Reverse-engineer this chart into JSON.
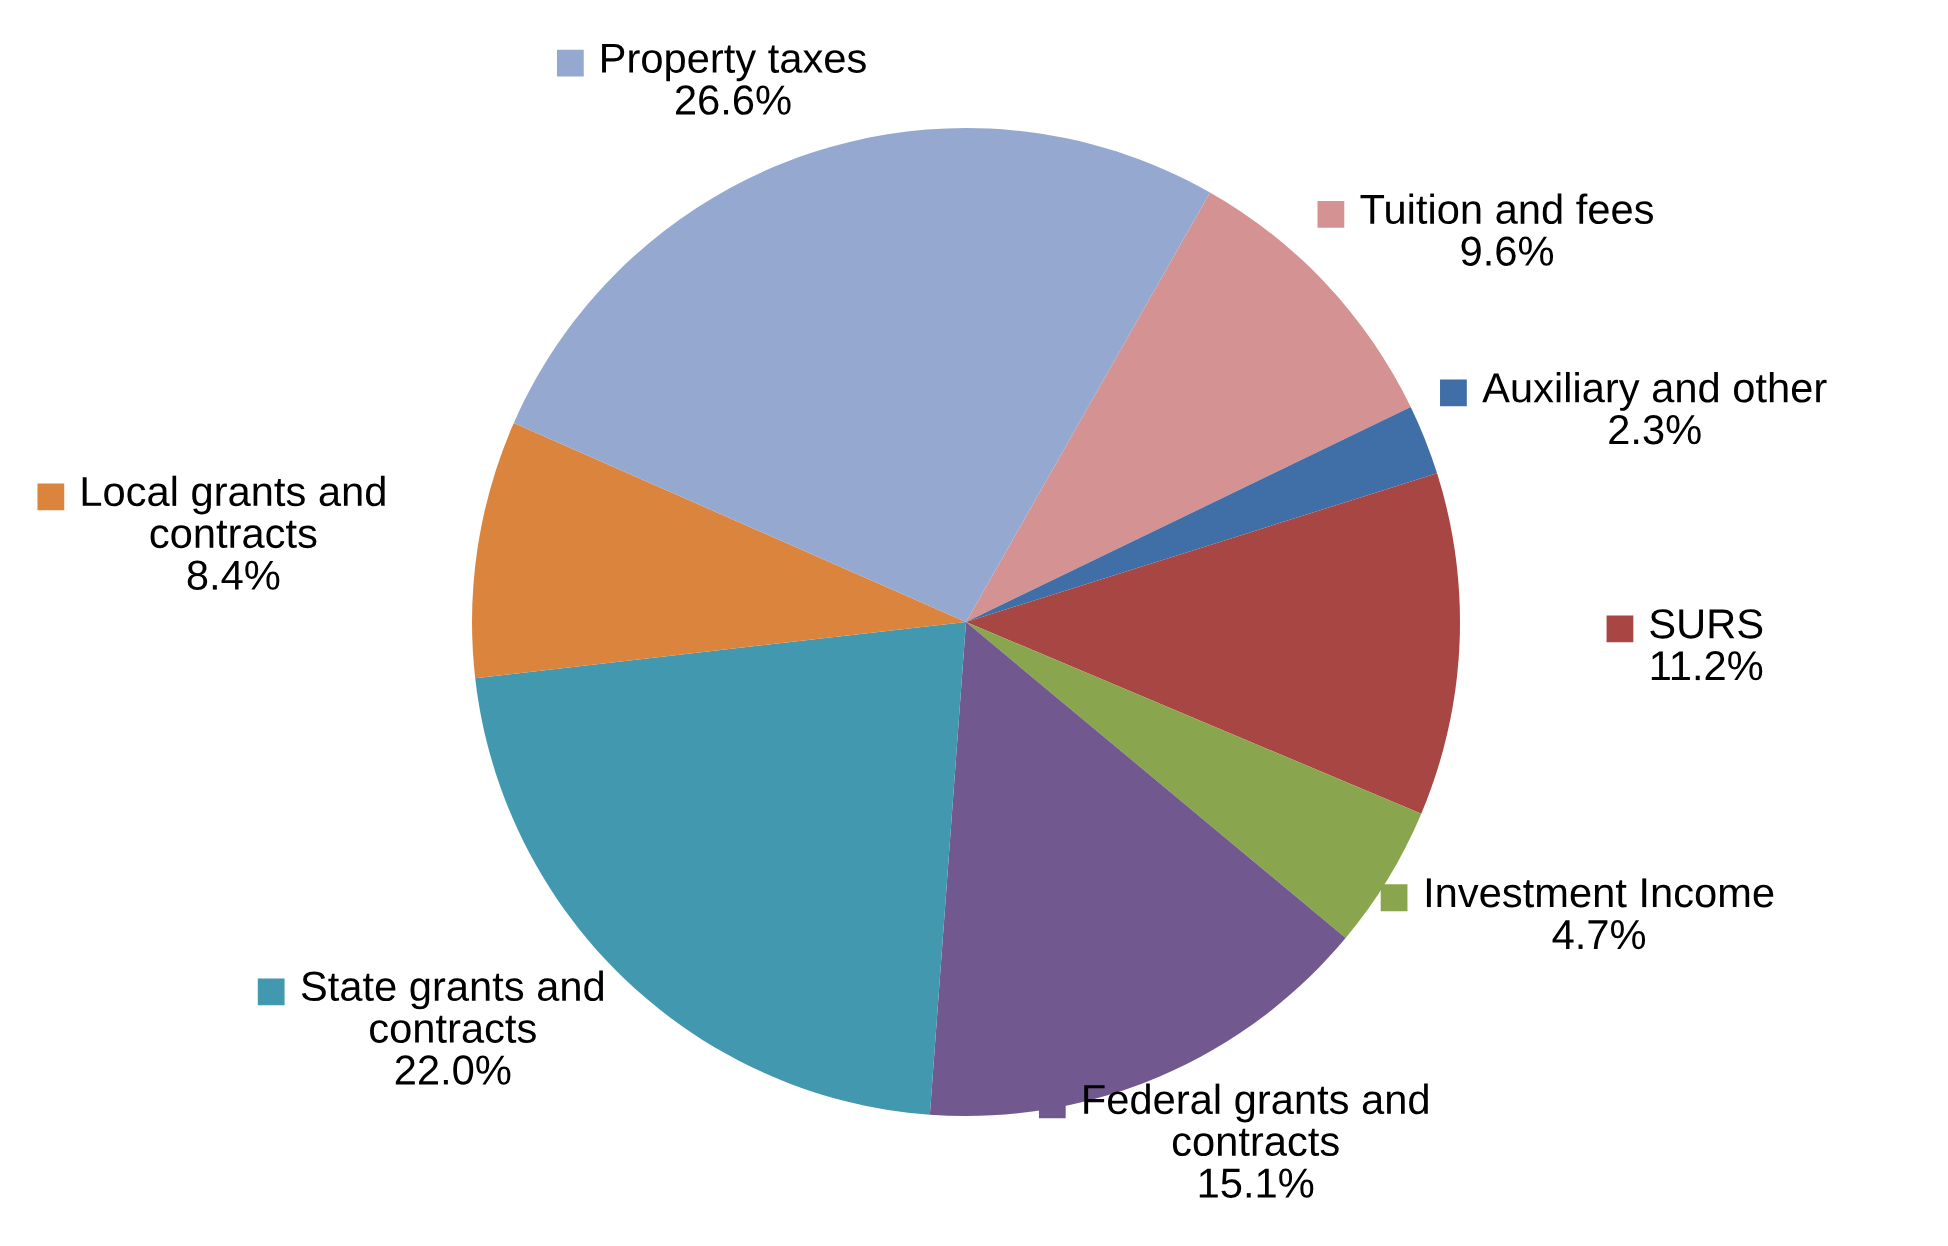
{
  "chart_data": {
    "type": "pie",
    "legend": "right",
    "categories": [
      "Tuition and fees",
      "Auxiliary and other",
      "SURS",
      "Investment Income",
      "Federal grants and\ncontracts",
      "State grants and\ncontracts",
      "Local grants and\ncontracts",
      "Property taxes"
    ],
    "values": [
      9.6,
      2.3,
      11.2,
      4.7,
      15.1,
      22.0,
      8.4,
      26.6
    ],
    "value_labels": [
      "9.6%",
      "2.3%",
      "11.2%",
      "4.7%",
      "15.1%",
      "22.0%",
      "8.4%",
      "26.6%"
    ],
    "colors": [
      "#d49392",
      "#3f6fa6",
      "#a84644",
      "#89a54e",
      "#71588f",
      "#4198af",
      "#db843d",
      "#95a9d0"
    ]
  }
}
